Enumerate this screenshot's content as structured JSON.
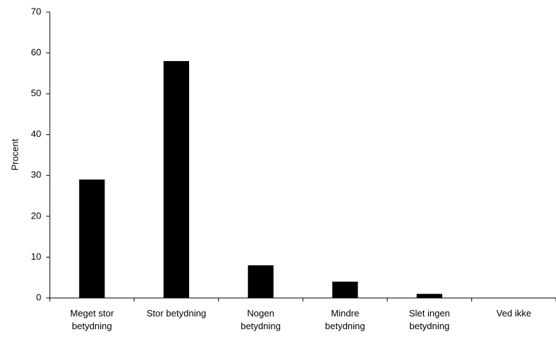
{
  "chart_data": {
    "type": "bar",
    "categories": [
      [
        "Meget stor",
        "betydning"
      ],
      [
        "Stor betydning"
      ],
      [
        "Nogen",
        "betydning"
      ],
      [
        "Mindre",
        "betydning"
      ],
      [
        "Slet ingen",
        "betydning"
      ],
      [
        "Ved ikke"
      ]
    ],
    "values": [
      29,
      58,
      8,
      4,
      1,
      0
    ],
    "title": "",
    "xlabel": "",
    "ylabel": "Procent",
    "ylim": [
      0,
      70
    ],
    "yticks": [
      0,
      10,
      20,
      30,
      40,
      50,
      60,
      70
    ],
    "grid": false,
    "legend": "none",
    "bar_color": "#000000",
    "axis_color": "#000000"
  }
}
